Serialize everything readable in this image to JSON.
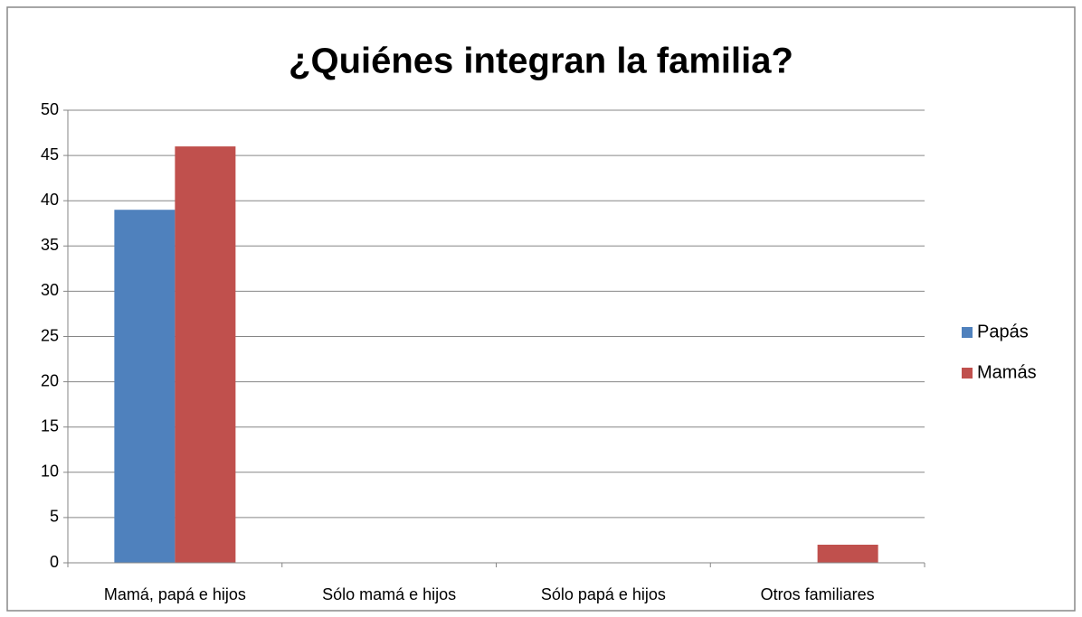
{
  "chart_data": {
    "type": "bar",
    "title": "¿Quiénes integran la familia?",
    "categories": [
      "Mamá, papá e hijos",
      "Sólo mamá e hijos",
      "Sólo papá e hijos",
      "Otros familiares"
    ],
    "series": [
      {
        "name": "Papás",
        "color": "#4f81bd",
        "values": [
          39,
          0,
          0,
          0
        ]
      },
      {
        "name": "Mamás",
        "color": "#c0504d",
        "values": [
          46,
          0,
          0,
          2
        ]
      }
    ],
    "ylim": [
      0,
      50
    ],
    "yticks": [
      0,
      5,
      10,
      15,
      20,
      25,
      30,
      35,
      40,
      45,
      50
    ],
    "grid": true,
    "legend": "right"
  }
}
